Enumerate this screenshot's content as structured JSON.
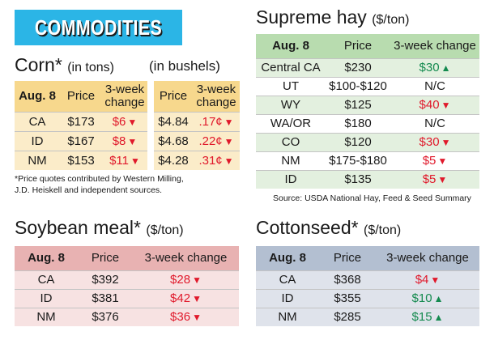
{
  "banner": {
    "title": "COMMODITIES"
  },
  "corn": {
    "title": "Corn*",
    "unit_tons": "(in tons)",
    "unit_bushels": "(in bushels)",
    "headers": {
      "date": "Aug. 8",
      "price": "Price",
      "change_line1": "3-week",
      "change_line2": "change"
    },
    "rows": [
      {
        "state": "CA",
        "price_ton": "$173",
        "change_ton": "$6",
        "dir_ton": "down",
        "price_bu": "$4.84",
        "change_bu": ".17¢",
        "dir_bu": "down"
      },
      {
        "state": "ID",
        "price_ton": "$167",
        "change_ton": "$8",
        "dir_ton": "down",
        "price_bu": "$4.68",
        "change_bu": ".22¢",
        "dir_bu": "down"
      },
      {
        "state": "NM",
        "price_ton": "$153",
        "change_ton": "$11",
        "dir_ton": "down",
        "price_bu": "$4.28",
        "change_bu": ".31¢",
        "dir_bu": "down"
      }
    ],
    "footnote_line1": "*Price quotes contributed by Western Milling,",
    "footnote_line2": "J.D. Heiskell and independent sources."
  },
  "soybean": {
    "title": "Soybean meal*",
    "unit": "($/ton)",
    "headers": {
      "date": "Aug. 8",
      "price": "Price",
      "change": "3-week change"
    },
    "rows": [
      {
        "state": "CA",
        "price": "$392",
        "change": "$28",
        "dir": "down"
      },
      {
        "state": "ID",
        "price": "$381",
        "change": "$42",
        "dir": "down"
      },
      {
        "state": "NM",
        "price": "$376",
        "change": "$36",
        "dir": "down"
      }
    ]
  },
  "hay": {
    "title": "Supreme hay",
    "unit": "($/ton)",
    "headers": {
      "date": "Aug. 8",
      "price": "Price",
      "change": "3-week change"
    },
    "rows": [
      {
        "state": "Central CA",
        "price": "$230",
        "change": "$30",
        "dir": "up"
      },
      {
        "state": "UT",
        "price": "$100-$120",
        "change": "N/C",
        "dir": "none"
      },
      {
        "state": "WY",
        "price": "$125",
        "change": "$40",
        "dir": "down"
      },
      {
        "state": "WA/OR",
        "price": "$180",
        "change": "N/C",
        "dir": "none"
      },
      {
        "state": "CO",
        "price": "$120",
        "change": "$30",
        "dir": "down"
      },
      {
        "state": "NM",
        "price": "$175-$180",
        "change": "$5",
        "dir": "down"
      },
      {
        "state": "ID",
        "price": "$135",
        "change": "$5",
        "dir": "down"
      }
    ],
    "source": "Source: USDA National Hay, Feed & Seed Summary"
  },
  "cottonseed": {
    "title": "Cottonseed*",
    "unit": "($/ton)",
    "headers": {
      "date": "Aug. 8",
      "price": "Price",
      "change": "3-week change"
    },
    "rows": [
      {
        "state": "CA",
        "price": "$368",
        "change": "$4",
        "dir": "down"
      },
      {
        "state": "ID",
        "price": "$355",
        "change": "$10",
        "dir": "up"
      },
      {
        "state": "NM",
        "price": "$285",
        "change": "$15",
        "dir": "up"
      }
    ]
  },
  "colors": {
    "banner": "#2bb5e6",
    "down": "#e0192b",
    "up": "#148a4f",
    "corn": "#f7d88d",
    "soy": "#e8b2b2",
    "hay": "#b8dcaf",
    "cotton": "#b3bfd1"
  }
}
